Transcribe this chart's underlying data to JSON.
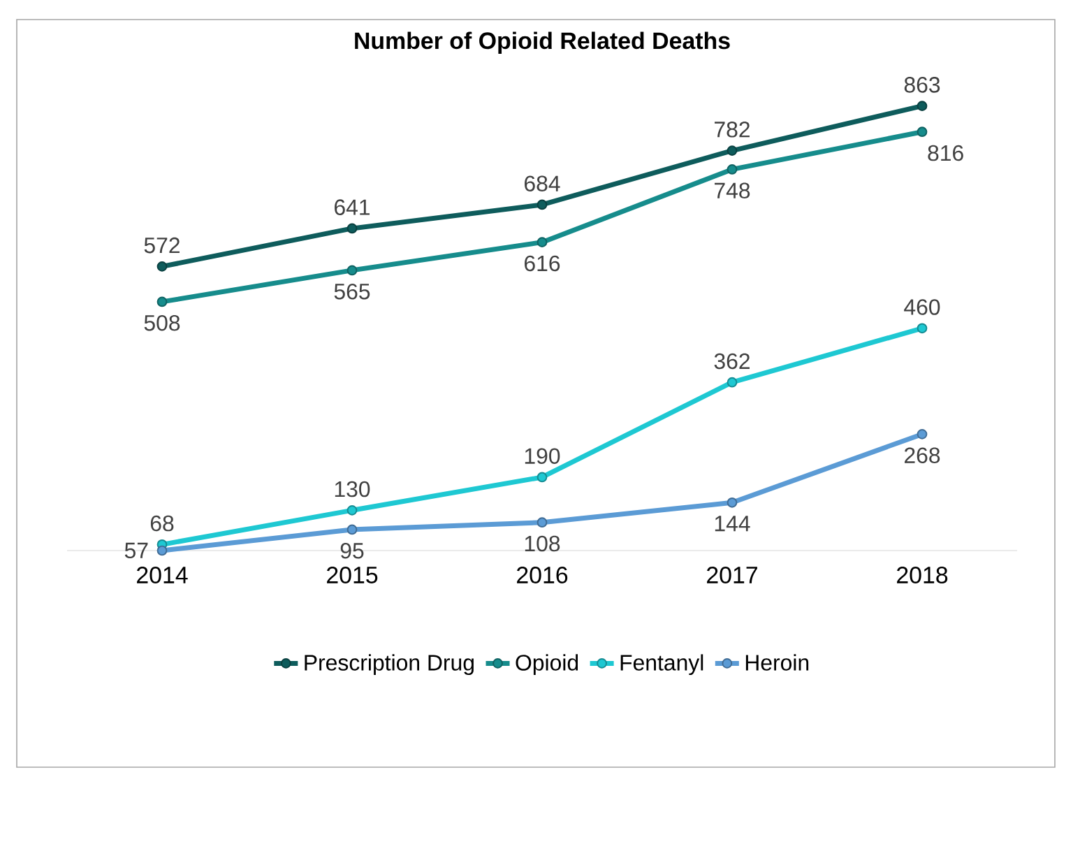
{
  "chart_data": {
    "type": "line",
    "title": "Number of Opioid Related Deaths",
    "categories": [
      "2014",
      "2015",
      "2016",
      "2017",
      "2018"
    ],
    "series": [
      {
        "name": "Prescription Drug",
        "color": "#0e5c5c",
        "values": [
          572,
          641,
          684,
          782,
          863
        ]
      },
      {
        "name": "Opioid",
        "color": "#168c8c",
        "values": [
          508,
          565,
          616,
          748,
          816
        ]
      },
      {
        "name": "Fentanyl",
        "color": "#1ec8d2",
        "values": [
          68,
          130,
          190,
          362,
          460
        ]
      },
      {
        "name": "Heroin",
        "color": "#5b9bd5",
        "values": [
          57,
          95,
          108,
          144,
          268
        ]
      }
    ],
    "data_labels": true,
    "marker": "circle",
    "line_style": "solid",
    "legend": "bottom",
    "grid": false,
    "tick_labels": "x"
  }
}
